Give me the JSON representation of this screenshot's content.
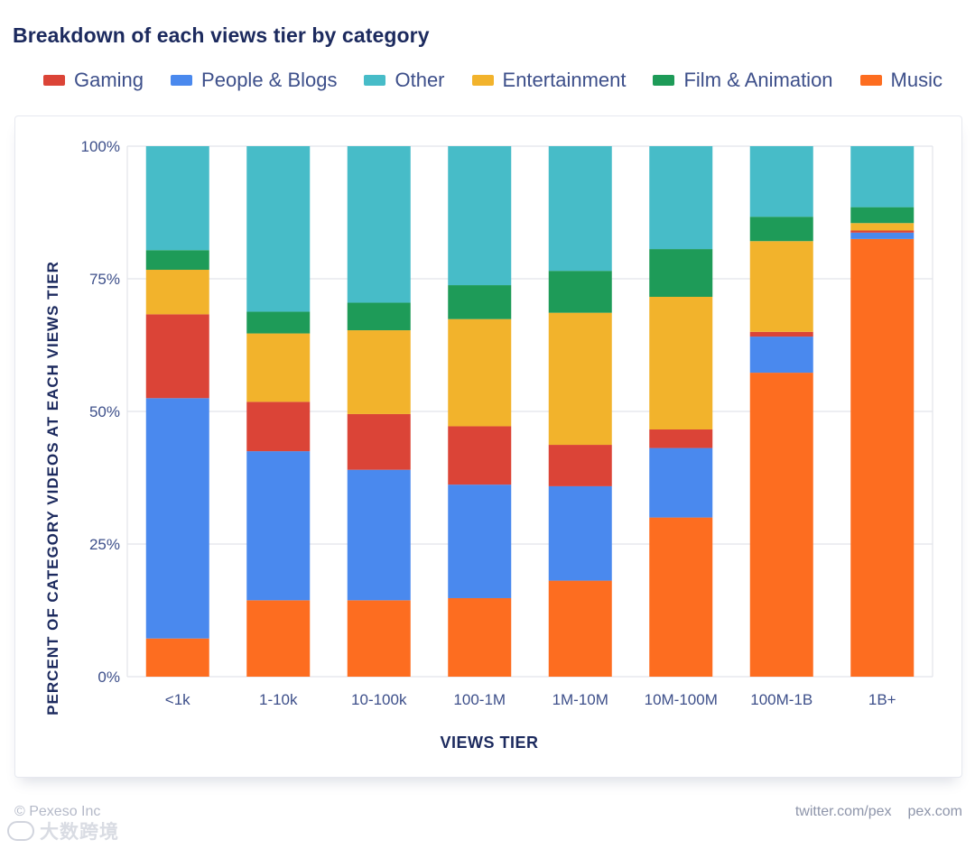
{
  "title": "Breakdown of each views tier by category",
  "legend": [
    {
      "label": "Gaming",
      "color": "#db4437"
    },
    {
      "label": "People & Blogs",
      "color": "#4a89ee"
    },
    {
      "label": "Other",
      "color": "#47bcc8"
    },
    {
      "label": "Entertainment",
      "color": "#f2b32c"
    },
    {
      "label": "Film & Animation",
      "color": "#1e9b58"
    },
    {
      "label": "Music",
      "color": "#fd6d20"
    }
  ],
  "chart_data": {
    "type": "bar",
    "stacked": true,
    "title": "Breakdown of each views tier by category",
    "xlabel": "VIEWS TIER",
    "ylabel": "PERCENT OF CATEGORY VIDEOS AT EACH VIEWS TIER",
    "ylim": [
      0,
      100
    ],
    "yticks": [
      "0%",
      "25%",
      "50%",
      "75%",
      "100%"
    ],
    "grid": true,
    "legend_position": "top",
    "categories": [
      "<1k",
      "1-10k",
      "10-100k",
      "100-1M",
      "1M-10M",
      "10M-100M",
      "100M-1B",
      "1B+"
    ],
    "series": [
      {
        "name": "Music",
        "color": "#fd6d20",
        "values": [
          7.2,
          14.4,
          14.4,
          14.8,
          18.1,
          30.0,
          57.3,
          82.5
        ]
      },
      {
        "name": "People & Blogs",
        "color": "#4a89ee",
        "values": [
          45.3,
          28.1,
          24.6,
          21.4,
          17.8,
          13.1,
          6.8,
          1.2
        ]
      },
      {
        "name": "Gaming",
        "color": "#db4437",
        "values": [
          15.8,
          9.3,
          10.5,
          11.0,
          7.8,
          3.5,
          0.9,
          0.4
        ]
      },
      {
        "name": "Entertainment",
        "color": "#f2b32c",
        "values": [
          8.4,
          12.9,
          15.8,
          20.2,
          24.9,
          25.0,
          17.1,
          1.4
        ]
      },
      {
        "name": "Film & Animation",
        "color": "#1e9b58",
        "values": [
          3.7,
          4.1,
          5.2,
          6.4,
          7.9,
          9.0,
          4.6,
          3.0
        ]
      },
      {
        "name": "Other",
        "color": "#47bcc8",
        "values": [
          19.6,
          31.2,
          29.5,
          26.2,
          23.5,
          19.4,
          13.3,
          11.5
        ]
      }
    ]
  },
  "footer": {
    "copyright": "© Pexeso Inc",
    "links": [
      "twitter.com/pex",
      "pex.com"
    ],
    "watermark": "大数跨境"
  }
}
